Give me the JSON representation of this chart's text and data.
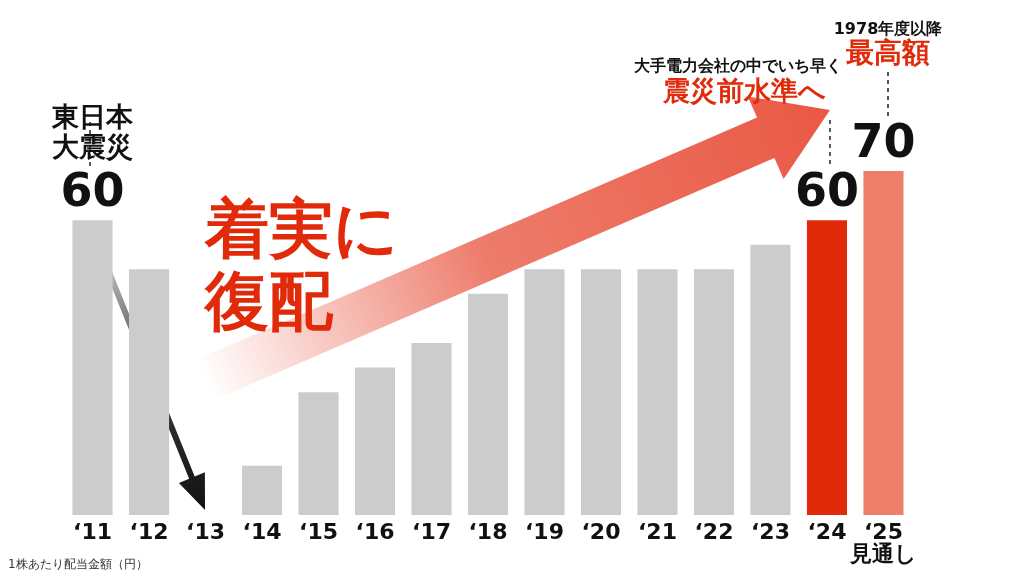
{
  "chart_data": {
    "type": "bar",
    "categories": [
      "‘11",
      "‘12",
      "‘13",
      "‘14",
      "‘15",
      "‘16",
      "‘17",
      "‘18",
      "‘19",
      "‘20",
      "‘21",
      "‘22",
      "‘23",
      "‘24",
      "‘25\n見通し"
    ],
    "values": [
      60,
      50,
      0,
      10,
      25,
      30,
      35,
      45,
      50,
      50,
      50,
      50,
      55,
      60,
      70
    ],
    "colors": [
      "#cccccc",
      "#cccccc",
      "#cccccc",
      "#cccccc",
      "#cccccc",
      "#cccccc",
      "#cccccc",
      "#cccccc",
      "#cccccc",
      "#cccccc",
      "#cccccc",
      "#cccccc",
      "#cccccc",
      "#e02a0a",
      "#ee806b"
    ],
    "value_labels": [
      "60",
      null,
      null,
      null,
      null,
      null,
      null,
      null,
      null,
      null,
      null,
      null,
      null,
      "60",
      "70"
    ],
    "annotations": [
      {
        "text": "東日本大震災",
        "x": "‘11",
        "y": 60
      },
      "大手電力会社の中でいち早く",
      "震災前水準へ",
      "1978年度以降",
      "最高額",
      "着実に復配",
      "1株あたり配当金額（円）"
    ]
  }
}
